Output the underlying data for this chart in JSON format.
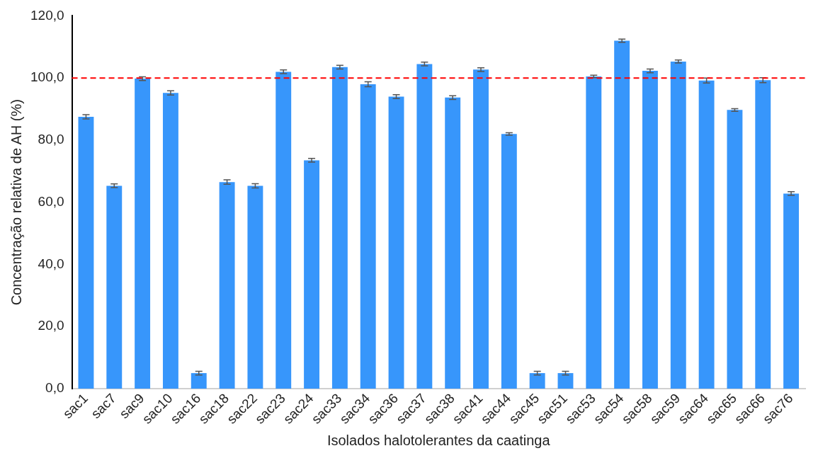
{
  "chart_data": {
    "type": "bar",
    "xlabel": "Isolados halotolerantes da caatinga",
    "ylabel": "Concentração relativa de AH (%)",
    "categories": [
      "sac1",
      "sac7",
      "sac9",
      "sac10",
      "sac16",
      "sac18",
      "sac22",
      "sac23",
      "sac24",
      "sac33",
      "sac34",
      "sac36",
      "sac37",
      "sac38",
      "sac41",
      "sac44",
      "sac45",
      "sac51",
      "sac53",
      "sac54",
      "sac58",
      "sac59",
      "sac64",
      "sac65",
      "sac66",
      "sac76"
    ],
    "values": [
      87.5,
      65.3,
      99.8,
      95.2,
      5.0,
      66.5,
      65.3,
      102.0,
      73.5,
      103.5,
      98.0,
      94.0,
      104.5,
      93.7,
      102.7,
      82.0,
      5.0,
      5.0,
      100.5,
      112.0,
      102.3,
      105.3,
      99.2,
      89.7,
      99.3,
      62.8
    ],
    "errors": [
      0.7,
      0.6,
      0.6,
      0.7,
      0.6,
      0.7,
      0.7,
      0.6,
      0.6,
      0.6,
      0.8,
      0.6,
      0.6,
      0.6,
      0.6,
      0.4,
      0.6,
      0.6,
      0.4,
      0.5,
      0.6,
      0.5,
      0.8,
      0.4,
      0.8,
      0.6
    ],
    "color": "#3796fb",
    "ylim": [
      0,
      120
    ],
    "yticks": [
      {
        "value": 0,
        "label": "0,0"
      },
      {
        "value": 20,
        "label": "20,0"
      },
      {
        "value": 40,
        "label": "40,0"
      },
      {
        "value": 60,
        "label": "60,0"
      },
      {
        "value": 80,
        "label": "80,0"
      },
      {
        "value": 100,
        "label": "100,0"
      },
      {
        "value": 120,
        "label": "120,0"
      }
    ],
    "grid": false,
    "legend": false,
    "ref_lines": [
      {
        "axis": "y",
        "value": 100,
        "color": "#ff0000",
        "line_style": "dashed"
      }
    ]
  }
}
